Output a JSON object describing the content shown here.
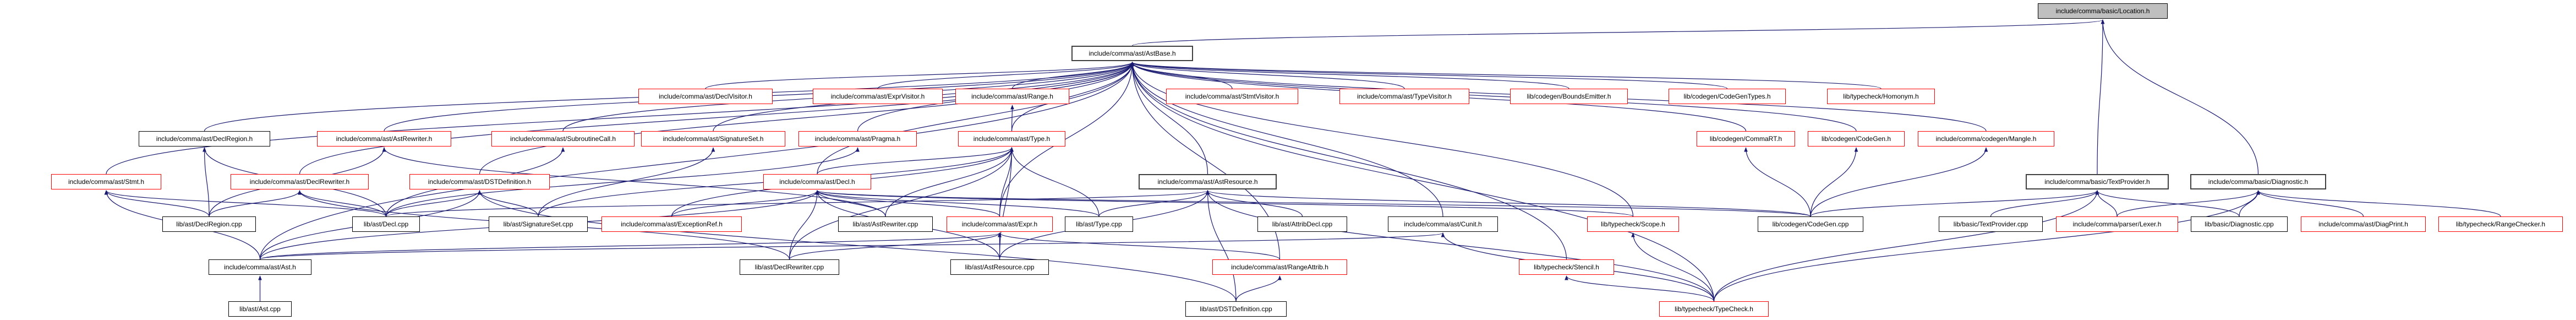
{
  "colors": {
    "edge": "#191970",
    "truncated_border": "#ff0000",
    "normal_border": "#000000",
    "root_fill": "#bfbfbf"
  },
  "nodes": {
    "location_h": {
      "label": "include/comma/basic/Location.h",
      "style": "gray"
    },
    "astbase_h": {
      "label": "include/comma/ast/AstBase.h",
      "style": "dark"
    },
    "declvisitor_h": {
      "label": "include/comma/ast/DeclVisitor.h",
      "style": "red"
    },
    "exprvisitor_h": {
      "label": "include/comma/ast/ExprVisitor.h",
      "style": "red"
    },
    "range_h": {
      "label": "include/comma/ast/Range.h",
      "style": "red"
    },
    "stmtvisitor_h": {
      "label": "include/comma/ast/StmtVisitor.h",
      "style": "red"
    },
    "typevisitor_h": {
      "label": "include/comma/ast/TypeVisitor.h",
      "style": "red"
    },
    "boundsemitter_h": {
      "label": "lib/codegen/BoundsEmitter.h",
      "style": "red"
    },
    "codegentypes_h": {
      "label": "lib/codegen/CodeGenTypes.h",
      "style": "red"
    },
    "homonym_h": {
      "label": "lib/typecheck/Homonym.h",
      "style": "red"
    },
    "declregion_h": {
      "label": "include/comma/ast/DeclRegion.h",
      "style": "black"
    },
    "astrewriter_h": {
      "label": "include/comma/ast/AstRewriter.h",
      "style": "red"
    },
    "subroutinecall_h": {
      "label": "include/comma/ast/SubroutineCall.h",
      "style": "red"
    },
    "signatureset_h": {
      "label": "include/comma/ast/SignatureSet.h",
      "style": "red"
    },
    "pragma_h": {
      "label": "include/comma/ast/Pragma.h",
      "style": "red"
    },
    "type_h": {
      "label": "include/comma/ast/Type.h",
      "style": "red"
    },
    "commart_h": {
      "label": "lib/codegen/CommaRT.h",
      "style": "red"
    },
    "codegen_h": {
      "label": "lib/codegen/CodeGen.h",
      "style": "red"
    },
    "mangle_h": {
      "label": "include/comma/codegen/Mangle.h",
      "style": "red"
    },
    "stmt_h": {
      "label": "include/comma/ast/Stmt.h",
      "style": "red"
    },
    "declrewriter_h": {
      "label": "include/comma/ast/DeclRewriter.h",
      "style": "red"
    },
    "dstdefinition_h": {
      "label": "include/comma/ast/DSTDefinition.h",
      "style": "red"
    },
    "decl_h": {
      "label": "include/comma/ast/Decl.h",
      "style": "red"
    },
    "astresource_h": {
      "label": "include/comma/ast/AstResource.h",
      "style": "dark"
    },
    "textprovider_h": {
      "label": "include/comma/basic/TextProvider.h",
      "style": "dark"
    },
    "diagnostic_h": {
      "label": "include/comma/basic/Diagnostic.h",
      "style": "dark"
    },
    "declregion_cpp": {
      "label": "lib/ast/DeclRegion.cpp",
      "style": "black"
    },
    "decl_cpp": {
      "label": "lib/ast/Decl.cpp",
      "style": "black"
    },
    "signatureset_cpp": {
      "label": "lib/ast/SignatureSet.cpp",
      "style": "black"
    },
    "exceptionref_h": {
      "label": "include/comma/ast/ExceptionRef.h",
      "style": "red"
    },
    "astrewriter_cpp": {
      "label": "lib/ast/AstRewriter.cpp",
      "style": "black"
    },
    "expr_h": {
      "label": "include/comma/ast/Expr.h",
      "style": "red"
    },
    "type_cpp": {
      "label": "lib/ast/Type.cpp",
      "style": "black"
    },
    "attribdecl_cpp": {
      "label": "lib/ast/AttribDecl.cpp",
      "style": "black"
    },
    "cunit_h": {
      "label": "include/comma/ast/Cunit.h",
      "style": "black"
    },
    "scope_h": {
      "label": "lib/typecheck/Scope.h",
      "style": "red"
    },
    "codegen_cpp": {
      "label": "lib/codegen/CodeGen.cpp",
      "style": "black"
    },
    "textprovider_cpp": {
      "label": "lib/basic/TextProvider.cpp",
      "style": "black"
    },
    "lexer_h": {
      "label": "include/comma/parser/Lexer.h",
      "style": "red"
    },
    "diagnostic_cpp": {
      "label": "lib/basic/Diagnostic.cpp",
      "style": "black"
    },
    "diagprint_h": {
      "label": "include/comma/ast/DiagPrint.h",
      "style": "red"
    },
    "rangechecker_h": {
      "label": "lib/typecheck/RangeChecker.h",
      "style": "red"
    },
    "ast_h": {
      "label": "include/comma/ast/Ast.h",
      "style": "black"
    },
    "declrewriter_cpp": {
      "label": "lib/ast/DeclRewriter.cpp",
      "style": "black"
    },
    "astresource_cpp": {
      "label": "lib/ast/AstResource.cpp",
      "style": "black"
    },
    "rangeattrib_h": {
      "label": "include/comma/ast/RangeAttrib.h",
      "style": "red"
    },
    "stencil_h": {
      "label": "lib/typecheck/Stencil.h",
      "style": "red"
    },
    "ast_cpp": {
      "label": "lib/ast/Ast.cpp",
      "style": "black"
    },
    "dstdefinition_cpp": {
      "label": "lib/ast/DSTDefinition.cpp",
      "style": "black"
    },
    "typecheck_h": {
      "label": "lib/typecheck/TypeCheck.h",
      "style": "red"
    }
  },
  "edges": [
    [
      "astbase_h",
      "location_h"
    ],
    [
      "textprovider_h",
      "location_h"
    ],
    [
      "diagnostic_h",
      "location_h"
    ],
    [
      "declvisitor_h",
      "astbase_h"
    ],
    [
      "exprvisitor_h",
      "astbase_h"
    ],
    [
      "range_h",
      "astbase_h"
    ],
    [
      "stmtvisitor_h",
      "astbase_h"
    ],
    [
      "typevisitor_h",
      "astbase_h"
    ],
    [
      "boundsemitter_h",
      "astbase_h"
    ],
    [
      "codegentypes_h",
      "astbase_h"
    ],
    [
      "homonym_h",
      "astbase_h"
    ],
    [
      "declregion_h",
      "astbase_h"
    ],
    [
      "astrewriter_h",
      "astbase_h"
    ],
    [
      "subroutinecall_h",
      "astbase_h"
    ],
    [
      "signatureset_h",
      "astbase_h"
    ],
    [
      "pragma_h",
      "astbase_h"
    ],
    [
      "type_h",
      "astbase_h"
    ],
    [
      "commart_h",
      "astbase_h"
    ],
    [
      "codegen_h",
      "astbase_h"
    ],
    [
      "mangle_h",
      "astbase_h"
    ],
    [
      "stmt_h",
      "astbase_h"
    ],
    [
      "declrewriter_h",
      "astbase_h"
    ],
    [
      "dstdefinition_h",
      "astbase_h"
    ],
    [
      "decl_h",
      "astbase_h"
    ],
    [
      "astresource_h",
      "astbase_h"
    ],
    [
      "expr_h",
      "astbase_h"
    ],
    [
      "cunit_h",
      "astbase_h"
    ],
    [
      "scope_h",
      "astbase_h"
    ],
    [
      "stencil_h",
      "astbase_h"
    ],
    [
      "typecheck_h",
      "astbase_h"
    ],
    [
      "ast_h",
      "astbase_h"
    ],
    [
      "rangeattrib_h",
      "astbase_h"
    ],
    [
      "type_h",
      "range_h"
    ],
    [
      "decl_h",
      "type_h"
    ],
    [
      "expr_h",
      "type_h"
    ],
    [
      "astrewriter_cpp",
      "type_h"
    ],
    [
      "type_cpp",
      "type_h"
    ],
    [
      "astresource_cpp",
      "type_h"
    ],
    [
      "signatureset_cpp",
      "type_h"
    ],
    [
      "exceptionref_h",
      "type_h"
    ],
    [
      "declrewriter_cpp",
      "type_h"
    ],
    [
      "declregion_cpp",
      "stmt_h"
    ],
    [
      "ast_h",
      "stmt_h"
    ],
    [
      "decl_cpp",
      "stmt_h"
    ],
    [
      "declregion_cpp",
      "declrewriter_h"
    ],
    [
      "decl_cpp",
      "declrewriter_h"
    ],
    [
      "declrewriter_cpp",
      "declrewriter_h"
    ],
    [
      "decl_cpp",
      "dstdefinition_h"
    ],
    [
      "ast_h",
      "dstdefinition_h"
    ],
    [
      "dstdefinition_cpp",
      "dstdefinition_h"
    ],
    [
      "signatureset_cpp",
      "dstdefinition_h"
    ],
    [
      "declregion_cpp",
      "declregion_h"
    ],
    [
      "decl_cpp",
      "declregion_h"
    ],
    [
      "declregion_cpp",
      "astrewriter_h"
    ],
    [
      "astrewriter_cpp",
      "astrewriter_h"
    ],
    [
      "signatureset_cpp",
      "signatureset_h"
    ],
    [
      "decl_cpp",
      "subroutinecall_h"
    ],
    [
      "decl_cpp",
      "pragma_h"
    ],
    [
      "exceptionref_h",
      "decl_h"
    ],
    [
      "astrewriter_cpp",
      "decl_h"
    ],
    [
      "expr_h",
      "decl_h"
    ],
    [
      "type_cpp",
      "decl_h"
    ],
    [
      "declrewriter_cpp",
      "decl_h"
    ],
    [
      "astresource_cpp",
      "decl_h"
    ],
    [
      "ast_h",
      "decl_h"
    ],
    [
      "codegen_cpp",
      "decl_h"
    ],
    [
      "scope_h",
      "decl_h"
    ],
    [
      "type_cpp",
      "astresource_h"
    ],
    [
      "attribdecl_cpp",
      "astresource_h"
    ],
    [
      "astresource_cpp",
      "astresource_h"
    ],
    [
      "dstdefinition_cpp",
      "astresource_h"
    ],
    [
      "codegen_cpp",
      "astresource_h"
    ],
    [
      "typecheck_h",
      "astresource_h"
    ],
    [
      "decl_cpp",
      "astresource_h"
    ],
    [
      "astresource_cpp",
      "expr_h"
    ],
    [
      "declrewriter_cpp",
      "expr_h"
    ],
    [
      "ast_h",
      "expr_h"
    ],
    [
      "rangeattrib_h",
      "expr_h"
    ],
    [
      "dstdefinition_cpp",
      "rangeattrib_h"
    ],
    [
      "typecheck_h",
      "cunit_h"
    ],
    [
      "ast_h",
      "cunit_h"
    ],
    [
      "typecheck_h",
      "scope_h"
    ],
    [
      "typecheck_h",
      "stencil_h"
    ],
    [
      "codegen_cpp",
      "commart_h"
    ],
    [
      "codegen_cpp",
      "codegen_h"
    ],
    [
      "codegen_cpp",
      "mangle_h"
    ],
    [
      "codegen_cpp",
      "textprovider_h"
    ],
    [
      "textprovider_cpp",
      "textprovider_h"
    ],
    [
      "lexer_h",
      "textprovider_h"
    ],
    [
      "diagnostic_cpp",
      "textprovider_h"
    ],
    [
      "typecheck_h",
      "textprovider_h"
    ],
    [
      "lexer_h",
      "diagnostic_h"
    ],
    [
      "diagnostic_cpp",
      "diagnostic_h"
    ],
    [
      "diagprint_h",
      "diagnostic_h"
    ],
    [
      "rangechecker_h",
      "diagnostic_h"
    ],
    [
      "typecheck_h",
      "diagnostic_h"
    ],
    [
      "ast_cpp",
      "ast_h"
    ]
  ]
}
